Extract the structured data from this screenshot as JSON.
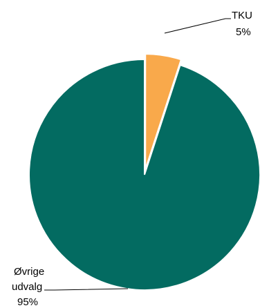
{
  "chart_data": {
    "type": "pie",
    "title": "",
    "categories": [
      "TKU",
      "Øvrige udvalg"
    ],
    "values": [
      5,
      95
    ],
    "unit": "%",
    "slices": [
      {
        "label_lines": [
          "TKU"
        ],
        "value_text": "5%",
        "value": 5,
        "color": "#f9a94b",
        "exploded": true
      },
      {
        "label_lines": [
          "Øvrige",
          "udvalg"
        ],
        "value_text": "95%",
        "value": 95,
        "color": "#036b61",
        "exploded": false
      }
    ],
    "start_angle": "12 o'clock",
    "direction": "clockwise",
    "legend": "none",
    "data_labels": "outside with leader lines"
  }
}
